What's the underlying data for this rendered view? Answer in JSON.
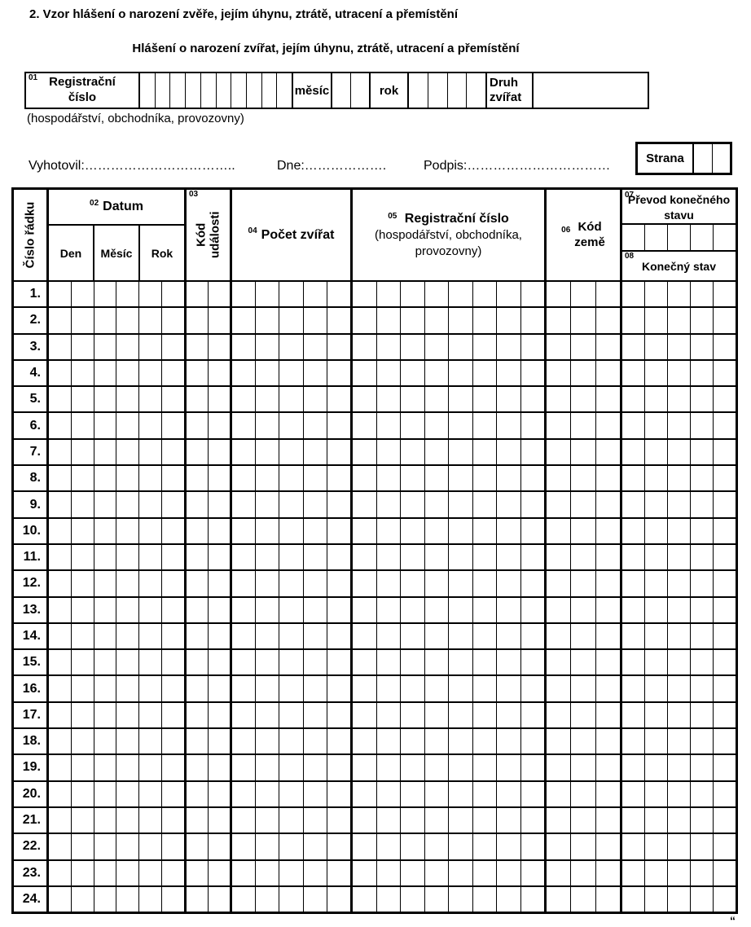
{
  "colors": {
    "ink": "#000000",
    "paper": "#ffffff"
  },
  "page": {
    "heading": "2. Vzor hlášení o narození zvěře, jejím úhynu, ztrátě, utracení a přemístění",
    "form_title": "Hlášení o narození zvířat, jejím úhynu, ztrátě, utracení a přemístění",
    "subnote": "(hospodářství, obchodníka, provozovny)",
    "bottom_mark": "“"
  },
  "header_bar": {
    "reg_number": {
      "code": "01",
      "label_lines": [
        "Registrační",
        "číslo"
      ],
      "cells": 10
    },
    "month": {
      "label": "měsíc",
      "cells": 2
    },
    "year": {
      "label": "rok",
      "cells": 4
    },
    "species": {
      "label_lines": [
        "Druh",
        "zvířat"
      ]
    }
  },
  "info_line": {
    "prepared_by": "Vyhotovil:……………………………..",
    "date": "Dne:……………….",
    "signature": "Podpis:……………………………",
    "page_box": {
      "label": "Strana",
      "cells": 2
    }
  },
  "table": {
    "row_number_col": {
      "label": "Číslo řádku"
    },
    "date_col": {
      "code": "02",
      "label": "Datum",
      "sub_headers": [
        "Den",
        "Měsíc",
        "Rok"
      ],
      "cells": 6
    },
    "event_col": {
      "code": "03",
      "label_lines": [
        "Kód",
        "události"
      ],
      "cells": 2
    },
    "count_col": {
      "code": "04",
      "label": "Počet zvířat",
      "cells": 5
    },
    "reg_col": {
      "code": "05",
      "label": "Registrační číslo",
      "sublabel_lines": [
        "(hospodářství, obchodníka,",
        "provozovny)"
      ],
      "cells": 8
    },
    "country_col": {
      "code": "06",
      "label_lines": [
        "Kód",
        "země"
      ],
      "cells": 3
    },
    "final_col": {
      "code": "07",
      "label": "Převod konečného stavu",
      "cells": 5,
      "bottom": {
        "code": "08",
        "label": "Konečný stav"
      }
    },
    "row_labels": [
      "1.",
      "2.",
      "3.",
      "4.",
      "5.",
      "6.",
      "7.",
      "8.",
      "9.",
      "10.",
      "11.",
      "12.",
      "13.",
      "14.",
      "15.",
      "16.",
      "17.",
      "18.",
      "19.",
      "20.",
      "21.",
      "22.",
      "23.",
      "24."
    ]
  }
}
